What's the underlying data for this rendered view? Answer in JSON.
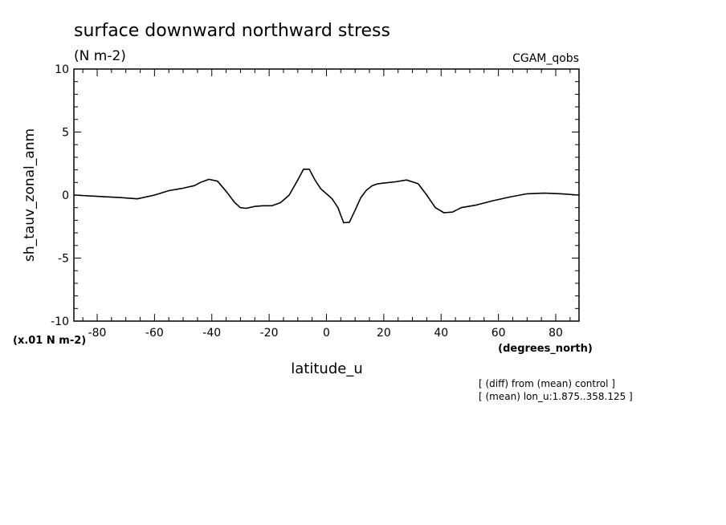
{
  "chart_data": {
    "type": "line",
    "title": "surface downward northward stress",
    "subtitle": "(N m-2)",
    "model_label": "CGAM_qobs",
    "ylabel": "sh_tauv_zonal_anm",
    "xlabel": "latitude_u",
    "x_units": "(degrees_north)",
    "y_scale_note": "(x.01 N m-2)",
    "notes": [
      "[ (diff) from (mean) control ]",
      "[ (mean) lon_u:1.875..358.125 ]"
    ],
    "xlim": [
      -88.125,
      88.125
    ],
    "ylim": [
      -10,
      10
    ],
    "x_ticks": [
      -80,
      -60,
      -40,
      -20,
      0,
      20,
      40,
      60,
      80
    ],
    "x_tick_labels": [
      "-80",
      "-60",
      "-40",
      "-20",
      "0",
      "20",
      "40",
      "60",
      "80"
    ],
    "y_ticks": [
      10,
      5,
      0,
      -5,
      -10
    ],
    "y_tick_labels": [
      "10",
      "5",
      "0",
      "-5",
      "-10"
    ],
    "grid": false,
    "series": [
      {
        "x": [
          -88,
          -80,
          -72,
          -66,
          -60,
          -55,
          -50,
          -46,
          -44,
          -41,
          -38,
          -35,
          -32,
          -30,
          -28,
          -25,
          -22,
          -19,
          -16,
          -13,
          -10,
          -8,
          -6,
          -4,
          -2,
          0,
          2,
          4,
          6,
          8,
          10,
          12,
          14,
          16,
          18,
          20,
          24,
          28,
          32,
          35,
          38,
          41,
          44,
          47,
          52,
          58,
          64,
          70,
          76,
          82,
          88
        ],
        "y": [
          0.0,
          -0.1,
          -0.2,
          -0.3,
          0.0,
          0.35,
          0.55,
          0.75,
          1.0,
          1.25,
          1.1,
          0.3,
          -0.6,
          -1.0,
          -1.05,
          -0.9,
          -0.85,
          -0.85,
          -0.6,
          0.0,
          1.2,
          2.05,
          2.05,
          1.2,
          0.5,
          0.1,
          -0.3,
          -1.0,
          -2.2,
          -2.15,
          -1.2,
          -0.2,
          0.4,
          0.75,
          0.9,
          0.95,
          1.05,
          1.2,
          0.9,
          0.0,
          -1.0,
          -1.4,
          -1.35,
          -1.0,
          -0.8,
          -0.45,
          -0.15,
          0.1,
          0.15,
          0.1,
          0.0
        ]
      }
    ]
  }
}
